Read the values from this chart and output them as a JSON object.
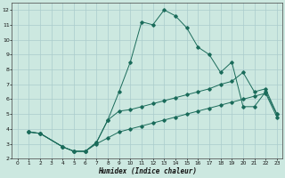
{
  "xlabel": "Humidex (Indice chaleur)",
  "bg_color": "#cce8e0",
  "grid_color": "#aacccc",
  "line_color": "#1a6b5a",
  "xlim": [
    -0.5,
    23.5
  ],
  "ylim": [
    2,
    12.5
  ],
  "xticks": [
    0,
    1,
    2,
    3,
    4,
    5,
    6,
    7,
    8,
    9,
    10,
    11,
    12,
    13,
    14,
    15,
    16,
    17,
    18,
    19,
    20,
    21,
    22,
    23
  ],
  "yticks": [
    2,
    3,
    4,
    5,
    6,
    7,
    8,
    9,
    10,
    11,
    12
  ],
  "curve1_x": [
    1,
    2,
    4,
    5,
    6,
    7,
    8,
    9,
    10,
    11,
    12,
    13,
    14,
    15,
    16,
    17,
    18,
    19,
    20,
    21,
    22,
    23
  ],
  "curve1_y": [
    3.8,
    3.7,
    2.8,
    2.5,
    2.5,
    3.1,
    4.6,
    6.5,
    8.5,
    11.2,
    11.0,
    12.0,
    11.6,
    10.8,
    9.5,
    9.0,
    7.8,
    8.5,
    5.5,
    5.5,
    6.5,
    5.0
  ],
  "curve2_x": [
    1,
    2,
    4,
    5,
    6,
    7,
    8,
    9,
    10,
    11,
    12,
    13,
    14,
    15,
    16,
    17,
    18,
    19,
    20,
    21,
    22,
    23
  ],
  "curve2_y": [
    3.8,
    3.7,
    2.8,
    2.5,
    2.5,
    3.1,
    4.6,
    5.2,
    5.3,
    5.5,
    5.7,
    5.9,
    6.1,
    6.3,
    6.5,
    6.7,
    7.0,
    7.2,
    7.8,
    6.5,
    6.7,
    5.0
  ],
  "curve3_x": [
    1,
    2,
    4,
    5,
    6,
    7,
    8,
    9,
    10,
    11,
    12,
    13,
    14,
    15,
    16,
    17,
    18,
    19,
    20,
    21,
    22,
    23
  ],
  "curve3_y": [
    3.8,
    3.7,
    2.8,
    2.5,
    2.5,
    3.0,
    3.4,
    3.8,
    4.0,
    4.2,
    4.4,
    4.6,
    4.8,
    5.0,
    5.2,
    5.4,
    5.6,
    5.8,
    6.0,
    6.2,
    6.4,
    4.8
  ]
}
